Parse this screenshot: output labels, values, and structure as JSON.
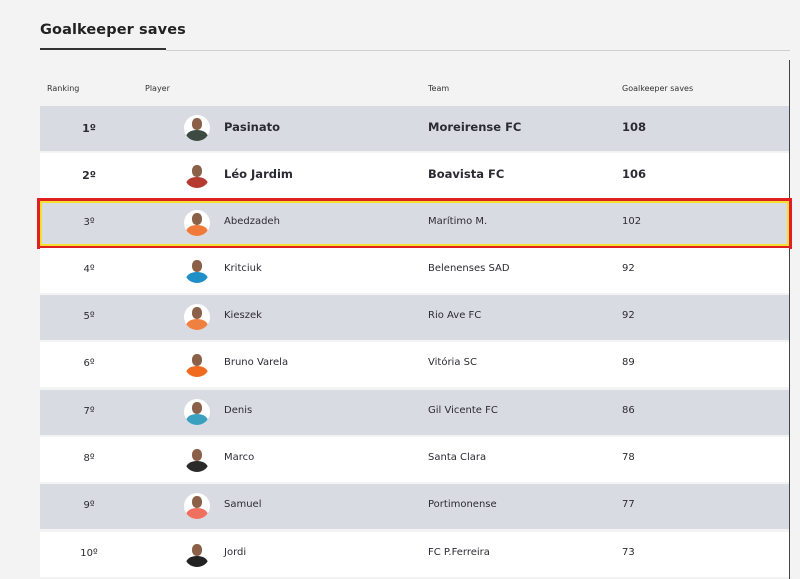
{
  "title": "Goalkeeper saves",
  "headers": {
    "ranking": "Ranking",
    "player": "Player",
    "team": "Team",
    "saves": "Goalkeeper saves"
  },
  "highlight_colors": {
    "outer": "#e02020",
    "inner": "#f5e030"
  },
  "rows": [
    {
      "rank": "1º",
      "player": "Pasinato",
      "team": "Moreirense FC",
      "saves": "108",
      "avatar_color": "#3c4a42",
      "highlighted": false
    },
    {
      "rank": "2º",
      "player": "Léo Jardim",
      "team": "Boavista FC",
      "saves": "106",
      "avatar_color": "#b53a30",
      "highlighted": false
    },
    {
      "rank": "3º",
      "player": "Abedzadeh",
      "team": "Marítimo M.",
      "saves": "102",
      "avatar_color": "#f07a3a",
      "highlighted": true
    },
    {
      "rank": "4º",
      "player": "Kritciuk",
      "team": "Belenenses SAD",
      "saves": "92",
      "avatar_color": "#1f8fc8",
      "highlighted": false
    },
    {
      "rank": "5º",
      "player": "Kieszek",
      "team": "Rio Ave FC",
      "saves": "92",
      "avatar_color": "#f08040",
      "highlighted": false
    },
    {
      "rank": "6º",
      "player": "Bruno Varela",
      "team": "Vitória SC",
      "saves": "89",
      "avatar_color": "#f06a20",
      "highlighted": false
    },
    {
      "rank": "7º",
      "player": "Denis",
      "team": "Gil Vicente FC",
      "saves": "86",
      "avatar_color": "#3aa0c0",
      "highlighted": false
    },
    {
      "rank": "8º",
      "player": "Marco",
      "team": "Santa Clara",
      "saves": "78",
      "avatar_color": "#2a2a2a",
      "highlighted": false
    },
    {
      "rank": "9º",
      "player": "Samuel",
      "team": "Portimonense",
      "saves": "77",
      "avatar_color": "#f07060",
      "highlighted": false
    },
    {
      "rank": "10º",
      "player": "Jordi",
      "team": "FC P.Ferreira",
      "saves": "73",
      "avatar_color": "#222222",
      "highlighted": false
    }
  ]
}
